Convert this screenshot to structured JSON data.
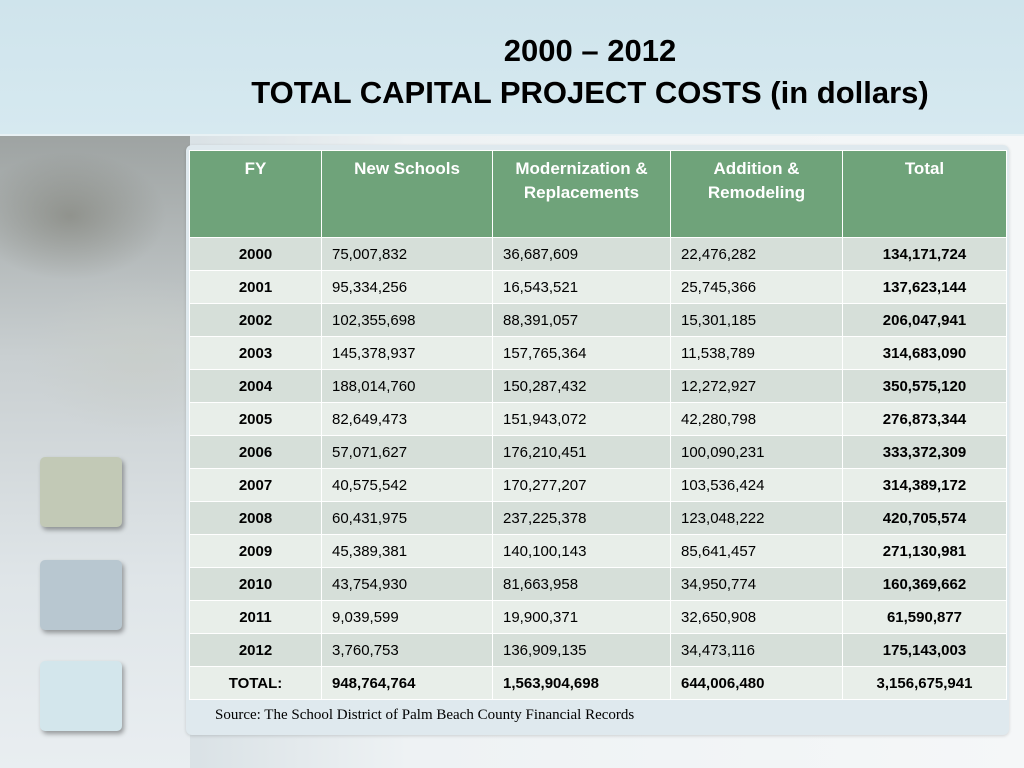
{
  "title": {
    "line1": "2000 – 2012",
    "line2": "TOTAL CAPITAL PROJECT COSTS (in dollars)"
  },
  "table": {
    "headers": [
      "FY",
      "New Schools",
      "Modernization & Replacements",
      "Addition & Remodeling",
      "Total"
    ],
    "rows": [
      {
        "fy": "2000",
        "new": "75,007,832",
        "mod": "36,687,609",
        "add": "22,476,282",
        "total": "134,171,724"
      },
      {
        "fy": "2001",
        "new": "95,334,256",
        "mod": "16,543,521",
        "add": "25,745,366",
        "total": "137,623,144"
      },
      {
        "fy": "2002",
        "new": "102,355,698",
        "mod": "88,391,057",
        "add": "15,301,185",
        "total": "206,047,941"
      },
      {
        "fy": "2003",
        "new": "145,378,937",
        "mod": "157,765,364",
        "add": "11,538,789",
        "total": "314,683,090"
      },
      {
        "fy": "2004",
        "new": "188,014,760",
        "mod": "150,287,432",
        "add": "12,272,927",
        "total": "350,575,120"
      },
      {
        "fy": "2005",
        "new": "82,649,473",
        "mod": "151,943,072",
        "add": "42,280,798",
        "total": "276,873,344"
      },
      {
        "fy": "2006",
        "new": "57,071,627",
        "mod": "176,210,451",
        "add": "100,090,231",
        "total": "333,372,309"
      },
      {
        "fy": "2007",
        "new": "40,575,542",
        "mod": "170,277,207",
        "add": "103,536,424",
        "total": "314,389,172"
      },
      {
        "fy": "2008",
        "new": "60,431,975",
        "mod": "237,225,378",
        "add": "123,048,222",
        "total": "420,705,574"
      },
      {
        "fy": "2009",
        "new": "45,389,381",
        "mod": "140,100,143",
        "add": "85,641,457",
        "total": "271,130,981"
      },
      {
        "fy": "2010",
        "new": "43,754,930",
        "mod": "81,663,958",
        "add": "34,950,774",
        "total": "160,369,662"
      },
      {
        "fy": "2011",
        "new": "9,039,599",
        "mod": "19,900,371",
        "add": "32,650,908",
        "total": "61,590,877"
      },
      {
        "fy": "2012",
        "new": "3,760,753",
        "mod": "136,909,135",
        "add": "34,473,116",
        "total": "175,143,003"
      }
    ],
    "total_row": {
      "fy": "TOTAL:",
      "new": "948,764,764",
      "mod": "1,563,904,698",
      "add": "644,006,480",
      "total": "3,156,675,941"
    }
  },
  "source": "Source: The School District of Palm Beach County Financial Records",
  "colors": {
    "header_bg": "#6fa37a",
    "row_alt_1": "#d6dfd9",
    "row_alt_2": "#e8eee9",
    "title_band": "#d6e9f0"
  }
}
